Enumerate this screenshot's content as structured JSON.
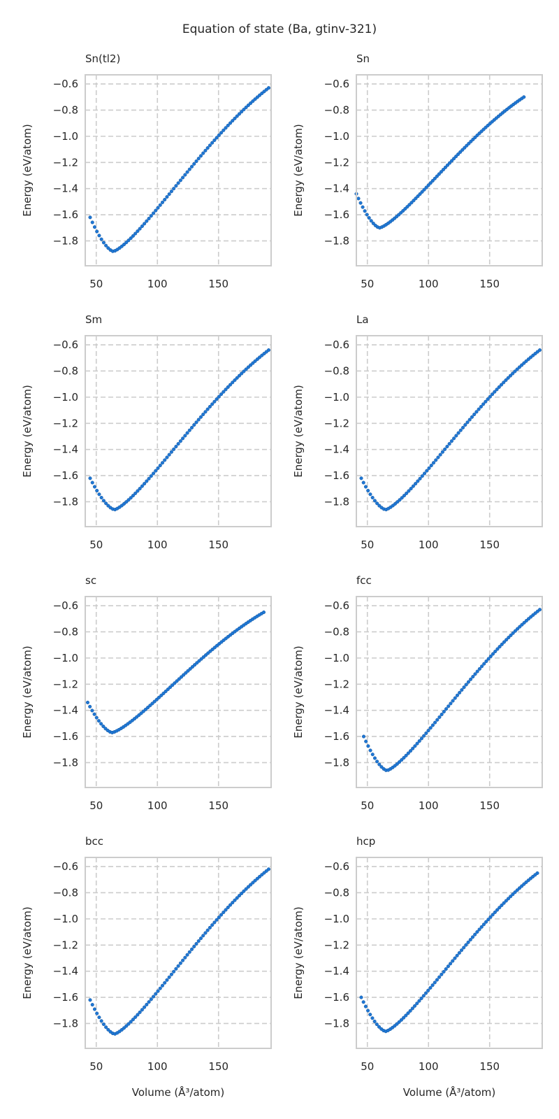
{
  "figure": {
    "title": "Equation of state (Ba, gtinv-321)",
    "xlabel": "Volume (Å³/atom)",
    "ylabel": "Energy (eV/atom)"
  },
  "style": {
    "point_color": "#1f77d4",
    "grid_color": "#cccccc",
    "frame_color": "#cccccc"
  },
  "chart_data": [
    {
      "type": "scatter",
      "title": "Sn(tl2)",
      "xlabel": "",
      "ylabel": "Energy (eV/atom)",
      "xlim": [
        41,
        193
      ],
      "ylim": [
        -1.99,
        -0.53
      ],
      "xticks": [
        50,
        100,
        150
      ],
      "yticks": [
        -1.8,
        -1.6,
        -1.4,
        -1.2,
        -1.0,
        -0.8,
        -0.6
      ],
      "grid": true,
      "v_start": 45,
      "v_end": 191,
      "n_points": 80,
      "v_min": 64,
      "e_min": -1.88,
      "e_start": -1.62,
      "e_end": -0.63
    },
    {
      "type": "scatter",
      "title": "Sn",
      "xlabel": "",
      "ylabel": "Energy (eV/atom)",
      "xlim": [
        41,
        193
      ],
      "ylim": [
        -1.99,
        -0.53
      ],
      "xticks": [
        50,
        100,
        150
      ],
      "yticks": [
        -1.8,
        -1.6,
        -1.4,
        -1.2,
        -1.0,
        -0.8,
        -0.6
      ],
      "grid": true,
      "v_start": 41,
      "v_end": 178,
      "n_points": 80,
      "v_min": 60,
      "e_min": -1.7,
      "e_start": -1.44,
      "e_end": -0.7
    },
    {
      "type": "scatter",
      "title": "Sm",
      "xlabel": "",
      "ylabel": "Energy (eV/atom)",
      "xlim": [
        41,
        193
      ],
      "ylim": [
        -1.99,
        -0.53
      ],
      "xticks": [
        50,
        100,
        150
      ],
      "yticks": [
        -1.8,
        -1.6,
        -1.4,
        -1.2,
        -1.0,
        -0.8,
        -0.6
      ],
      "grid": true,
      "v_start": 45,
      "v_end": 191,
      "n_points": 80,
      "v_min": 65,
      "e_min": -1.86,
      "e_start": -1.62,
      "e_end": -0.64
    },
    {
      "type": "scatter",
      "title": "La",
      "xlabel": "",
      "ylabel": "Energy (eV/atom)",
      "xlim": [
        41,
        193
      ],
      "ylim": [
        -1.99,
        -0.53
      ],
      "xticks": [
        50,
        100,
        150
      ],
      "yticks": [
        -1.8,
        -1.6,
        -1.4,
        -1.2,
        -1.0,
        -0.8,
        -0.6
      ],
      "grid": true,
      "v_start": 45,
      "v_end": 191,
      "n_points": 80,
      "v_min": 65,
      "e_min": -1.86,
      "e_start": -1.62,
      "e_end": -0.64
    },
    {
      "type": "scatter",
      "title": "sc",
      "xlabel": "",
      "ylabel": "Energy (eV/atom)",
      "xlim": [
        41,
        193
      ],
      "ylim": [
        -1.99,
        -0.53
      ],
      "xticks": [
        50,
        100,
        150
      ],
      "yticks": [
        -1.8,
        -1.6,
        -1.4,
        -1.2,
        -1.0,
        -0.8,
        -0.6
      ],
      "grid": true,
      "v_start": 43,
      "v_end": 187,
      "n_points": 80,
      "v_min": 63,
      "e_min": -1.57,
      "e_start": -1.34,
      "e_end": -0.65
    },
    {
      "type": "scatter",
      "title": "fcc",
      "xlabel": "",
      "ylabel": "Energy (eV/atom)",
      "xlim": [
        41,
        193
      ],
      "ylim": [
        -1.99,
        -0.53
      ],
      "xticks": [
        50,
        100,
        150
      ],
      "yticks": [
        -1.8,
        -1.6,
        -1.4,
        -1.2,
        -1.0,
        -0.8,
        -0.6
      ],
      "grid": true,
      "v_start": 47,
      "v_end": 191,
      "n_points": 80,
      "v_min": 66,
      "e_min": -1.86,
      "e_start": -1.6,
      "e_end": -0.63
    },
    {
      "type": "scatter",
      "title": "bcc",
      "xlabel": "Volume (Å³/atom)",
      "ylabel": "Energy (eV/atom)",
      "xlim": [
        41,
        193
      ],
      "ylim": [
        -1.99,
        -0.53
      ],
      "xticks": [
        50,
        100,
        150
      ],
      "yticks": [
        -1.8,
        -1.6,
        -1.4,
        -1.2,
        -1.0,
        -0.8,
        -0.6
      ],
      "grid": true,
      "v_start": 45,
      "v_end": 191,
      "n_points": 80,
      "v_min": 65,
      "e_min": -1.88,
      "e_start": -1.62,
      "e_end": -0.62
    },
    {
      "type": "scatter",
      "title": "hcp",
      "xlabel": "Volume (Å³/atom)",
      "ylabel": "Energy (eV/atom)",
      "xlim": [
        41,
        193
      ],
      "ylim": [
        -1.99,
        -0.53
      ],
      "xticks": [
        50,
        100,
        150
      ],
      "yticks": [
        -1.8,
        -1.6,
        -1.4,
        -1.2,
        -1.0,
        -0.8,
        -0.6
      ],
      "grid": true,
      "v_start": 45,
      "v_end": 189,
      "n_points": 80,
      "v_min": 65,
      "e_min": -1.86,
      "e_start": -1.6,
      "e_end": -0.65
    }
  ]
}
